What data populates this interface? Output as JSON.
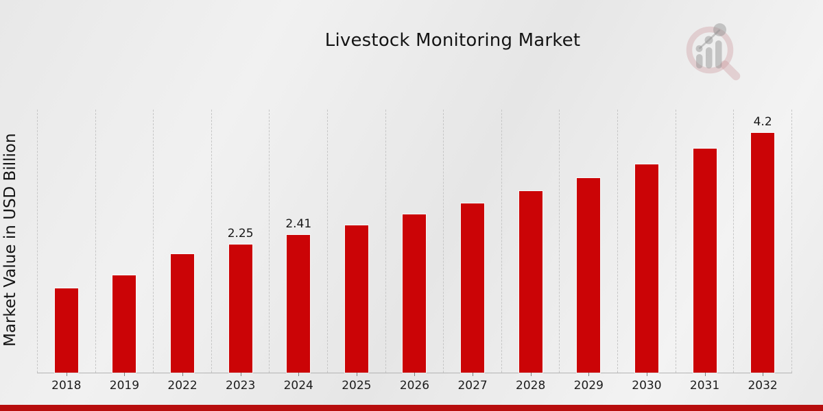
{
  "title": "Livestock Monitoring Market",
  "ylabel": "Market Value in USD Billion",
  "watermark_icon": "magnifier-bar-chart-logo",
  "colors": {
    "bar": "#cb0406",
    "bottom_strip": "#b70d0d",
    "axis": "#b3b3b3",
    "gridline": "#c6c6c6",
    "text": "#141414",
    "watermark_ring": "#c98f96",
    "watermark_bars": "#8f8f8f"
  },
  "chart_data": {
    "type": "bar",
    "title": "Livestock Monitoring Market",
    "xlabel": "",
    "ylabel": "Market Value in USD Billion",
    "categories": [
      "2018",
      "2019",
      "2022",
      "2023",
      "2024",
      "2025",
      "2026",
      "2027",
      "2028",
      "2029",
      "2030",
      "2031",
      "2032"
    ],
    "values": [
      1.48,
      1.7,
      2.08,
      2.25,
      2.41,
      2.58,
      2.77,
      2.97,
      3.18,
      3.41,
      3.65,
      3.92,
      4.2
    ],
    "data_labels": [
      "",
      "",
      "",
      "2.25",
      "2.41",
      "",
      "",
      "",
      "",
      "",
      "",
      "",
      "4.2"
    ],
    "ylim": [
      0,
      4.61
    ],
    "grid": "vertical-dashed",
    "legend": "none",
    "bar_color": "#cb0406"
  }
}
